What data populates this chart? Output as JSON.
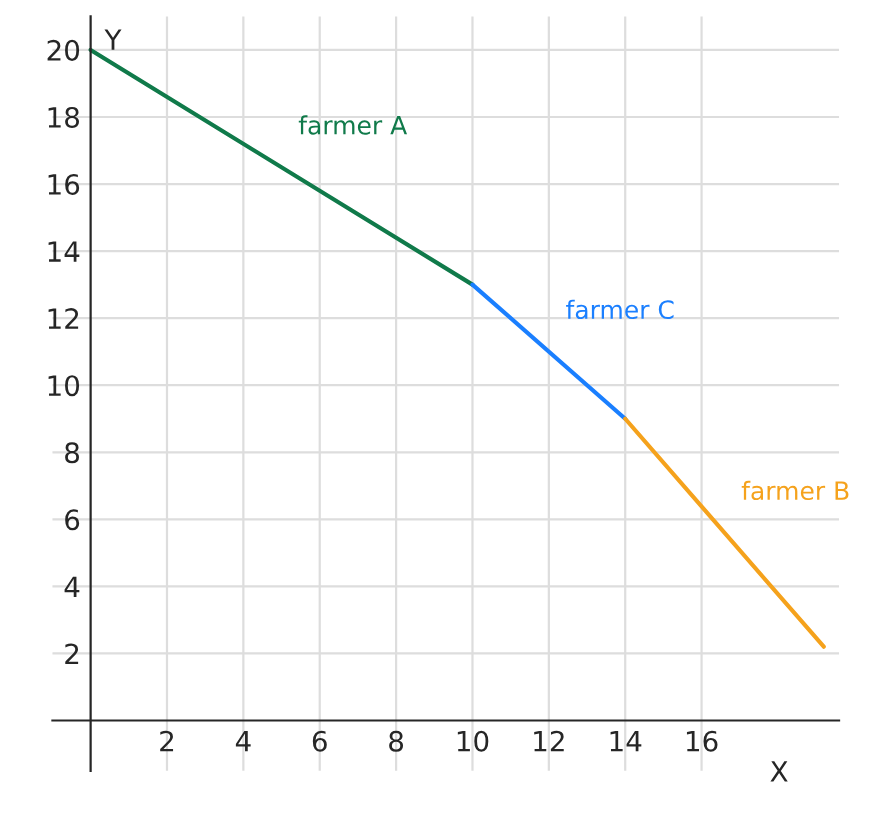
{
  "chart_data": {
    "type": "line",
    "xlabel": "X",
    "ylabel": "Y",
    "xlim": [
      -1,
      19.6
    ],
    "ylim": [
      -1.5,
      21
    ],
    "xticks": [
      2,
      4,
      6,
      8,
      10,
      12,
      14,
      16
    ],
    "yticks": [
      2,
      4,
      6,
      8,
      10,
      12,
      14,
      16,
      18,
      20
    ],
    "grid": true,
    "legend": false,
    "series": [
      {
        "name": "farmer A",
        "color": "#107a4a",
        "x": [
          0,
          10
        ],
        "values": [
          20,
          13
        ]
      },
      {
        "name": "farmer C",
        "color": "#1a7fff",
        "x": [
          10,
          14
        ],
        "values": [
          13,
          9
        ]
      },
      {
        "name": "farmer B",
        "color": "#f5a21c",
        "x": [
          14,
          19.2
        ],
        "values": [
          9,
          2.2
        ]
      }
    ]
  }
}
